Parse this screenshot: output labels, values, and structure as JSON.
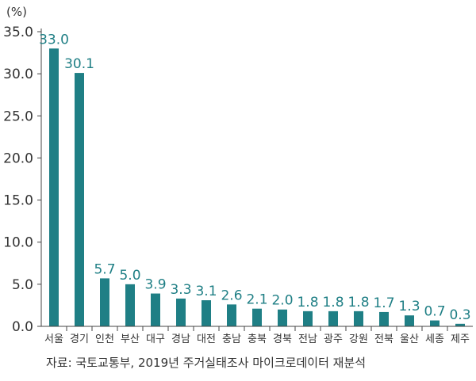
{
  "chart_data": {
    "type": "bar",
    "unit_label": "(%)",
    "categories": [
      "서울",
      "경기",
      "인천",
      "부산",
      "대구",
      "경남",
      "대전",
      "충남",
      "충북",
      "경북",
      "전남",
      "광주",
      "강원",
      "전북",
      "울산",
      "세종",
      "제주"
    ],
    "values": [
      33.0,
      30.1,
      5.7,
      5.0,
      3.9,
      3.3,
      3.1,
      2.6,
      2.1,
      2.0,
      1.8,
      1.8,
      1.8,
      1.7,
      1.3,
      0.7,
      0.3
    ],
    "value_labels": [
      "33.0",
      "30.1",
      "5.7",
      "5.0",
      "3.9",
      "3.3",
      "3.1",
      "2.6",
      "2.1",
      "2.0",
      "1.8",
      "1.8",
      "1.8",
      "1.7",
      "1.3",
      "0.7",
      "0.3"
    ],
    "yticks": [
      "0.0",
      "5.0",
      "10.0",
      "15.0",
      "20.0",
      "25.0",
      "30.0",
      "35.0"
    ],
    "ylim": [
      0,
      35
    ],
    "bar_color": "#1f7f85",
    "grid": false
  },
  "source": "자료: 국토교통부, 2019년 주거실태조사 마이크로데이터 재분석"
}
